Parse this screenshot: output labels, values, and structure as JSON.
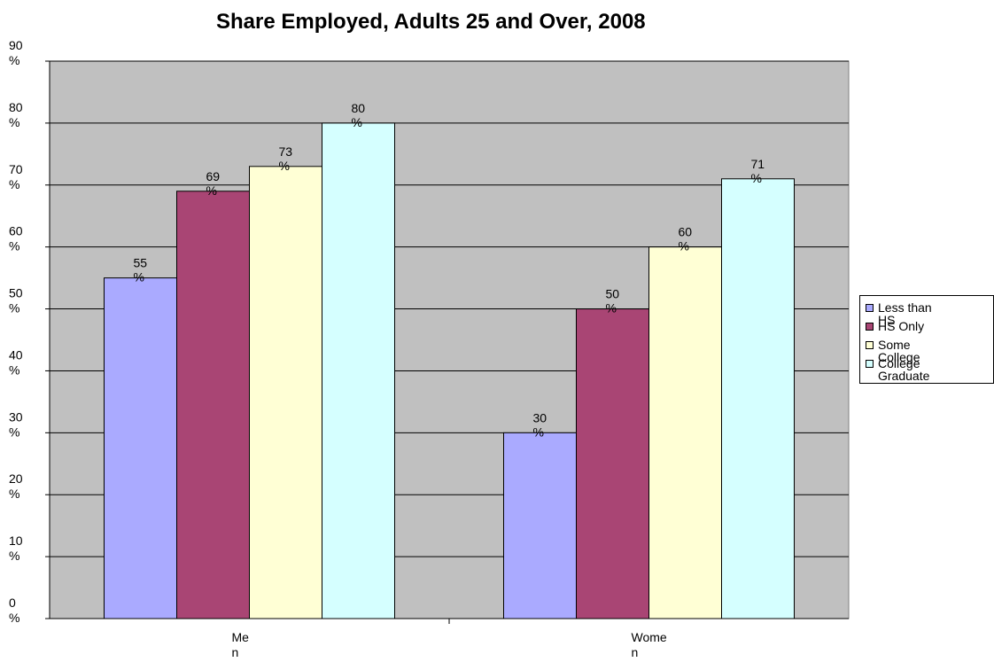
{
  "chart_data": {
    "type": "bar",
    "title": "Share Employed, Adults 25 and Over, 2008",
    "categories": [
      "Men",
      "Women"
    ],
    "series": [
      {
        "name": "Less than HS",
        "values": [
          55,
          30
        ],
        "labels": [
          "55 %",
          "30 %"
        ],
        "color": "#aaaaff"
      },
      {
        "name": "HS Only",
        "values": [
          69,
          50
        ],
        "labels": [
          "69 %",
          "50 %"
        ],
        "color": "#a94574"
      },
      {
        "name": "Some College",
        "values": [
          73,
          60
        ],
        "labels": [
          "73 %",
          "60 %"
        ],
        "color": "#ffffd5"
      },
      {
        "name": "College Graduate",
        "values": [
          80,
          71
        ],
        "labels": [
          "80 %",
          "71 %"
        ],
        "color": "#d5ffff"
      }
    ],
    "yticks": [
      "0 %",
      "10 %",
      "20 %",
      "30 %",
      "40 %",
      "50 %",
      "60 %",
      "70 %",
      "80 %",
      "90 %"
    ],
    "ylim": [
      0,
      90
    ],
    "xlabel": "",
    "ylabel": "",
    "grid": true,
    "plot_background": "#c0c0c0",
    "legend_position": "right"
  }
}
